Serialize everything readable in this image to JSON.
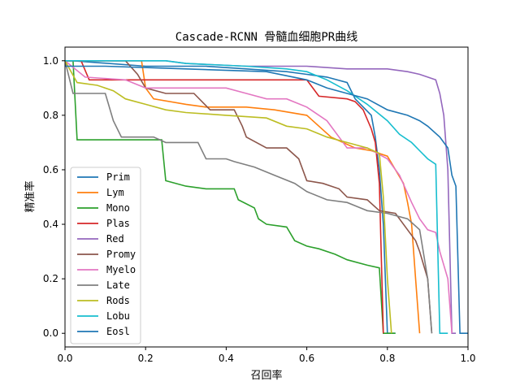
{
  "chart_data": {
    "type": "line",
    "title": "Cascade-RCNN 骨髓血细胞PR曲线",
    "xlabel": "召回率",
    "ylabel": "精准率",
    "xlim": [
      0,
      1.0
    ],
    "ylim": [
      -0.05,
      1.05
    ],
    "xticks": [
      "0.0",
      "0.2",
      "0.4",
      "0.6",
      "0.8",
      "1.0"
    ],
    "yticks": [
      "0.0",
      "0.2",
      "0.4",
      "0.6",
      "0.8",
      "1.0"
    ],
    "legend_position": "lower-left",
    "grid": false,
    "series": [
      {
        "name": "Prim",
        "color": "#1f77b4",
        "points": [
          [
            0,
            1.0
          ],
          [
            0.02,
            1.0
          ],
          [
            0.2,
            0.98
          ],
          [
            0.35,
            0.98
          ],
          [
            0.45,
            0.97
          ],
          [
            0.55,
            0.96
          ],
          [
            0.6,
            0.95
          ],
          [
            0.65,
            0.94
          ],
          [
            0.7,
            0.92
          ],
          [
            0.72,
            0.86
          ],
          [
            0.76,
            0.8
          ],
          [
            0.77,
            0.72
          ],
          [
            0.78,
            0.6
          ],
          [
            0.79,
            0.4
          ],
          [
            0.8,
            0.0
          ],
          [
            0.82,
            0.0
          ]
        ]
      },
      {
        "name": "Lym",
        "color": "#ff7f0e",
        "points": [
          [
            0,
            1.0
          ],
          [
            0.19,
            1.0
          ],
          [
            0.2,
            0.9
          ],
          [
            0.22,
            0.86
          ],
          [
            0.3,
            0.84
          ],
          [
            0.35,
            0.83
          ],
          [
            0.45,
            0.83
          ],
          [
            0.52,
            0.82
          ],
          [
            0.6,
            0.8
          ],
          [
            0.63,
            0.76
          ],
          [
            0.66,
            0.72
          ],
          [
            0.72,
            0.68
          ],
          [
            0.76,
            0.67
          ],
          [
            0.8,
            0.65
          ],
          [
            0.82,
            0.6
          ],
          [
            0.84,
            0.55
          ],
          [
            0.85,
            0.48
          ],
          [
            0.86,
            0.4
          ],
          [
            0.87,
            0.2
          ],
          [
            0.88,
            0.0
          ]
        ]
      },
      {
        "name": "Mono",
        "color": "#2ca02c",
        "points": [
          [
            0,
            1.0
          ],
          [
            0.02,
            1.0
          ],
          [
            0.03,
            0.71
          ],
          [
            0.1,
            0.71
          ],
          [
            0.24,
            0.71
          ],
          [
            0.25,
            0.56
          ],
          [
            0.3,
            0.54
          ],
          [
            0.35,
            0.53
          ],
          [
            0.42,
            0.53
          ],
          [
            0.43,
            0.49
          ],
          [
            0.47,
            0.46
          ],
          [
            0.48,
            0.42
          ],
          [
            0.5,
            0.4
          ],
          [
            0.55,
            0.39
          ],
          [
            0.57,
            0.34
          ],
          [
            0.6,
            0.32
          ],
          [
            0.63,
            0.31
          ],
          [
            0.67,
            0.29
          ],
          [
            0.7,
            0.27
          ],
          [
            0.75,
            0.25
          ],
          [
            0.78,
            0.24
          ],
          [
            0.79,
            0.0
          ],
          [
            0.82,
            0.0
          ]
        ]
      },
      {
        "name": "Plas",
        "color": "#d62728",
        "points": [
          [
            0,
            1.0
          ],
          [
            0.04,
            1.0
          ],
          [
            0.06,
            0.93
          ],
          [
            0.2,
            0.93
          ],
          [
            0.4,
            0.93
          ],
          [
            0.6,
            0.93
          ],
          [
            0.63,
            0.87
          ],
          [
            0.7,
            0.86
          ],
          [
            0.72,
            0.85
          ],
          [
            0.74,
            0.82
          ],
          [
            0.76,
            0.75
          ],
          [
            0.77,
            0.7
          ],
          [
            0.78,
            0.55
          ],
          [
            0.79,
            0.0
          ]
        ]
      },
      {
        "name": "Red",
        "color": "#9467bd",
        "points": [
          [
            0,
            1.0
          ],
          [
            0.25,
            1.0
          ],
          [
            0.3,
            0.99
          ],
          [
            0.45,
            0.98
          ],
          [
            0.6,
            0.98
          ],
          [
            0.7,
            0.97
          ],
          [
            0.8,
            0.97
          ],
          [
            0.85,
            0.96
          ],
          [
            0.88,
            0.95
          ],
          [
            0.9,
            0.94
          ],
          [
            0.92,
            0.93
          ],
          [
            0.93,
            0.88
          ],
          [
            0.94,
            0.8
          ],
          [
            0.95,
            0.6
          ],
          [
            0.96,
            0.0
          ],
          [
            0.97,
            0.0
          ]
        ]
      },
      {
        "name": "Promy",
        "color": "#8c564b",
        "points": [
          [
            0,
            1.0
          ],
          [
            0.15,
            1.0
          ],
          [
            0.18,
            0.95
          ],
          [
            0.2,
            0.9
          ],
          [
            0.25,
            0.88
          ],
          [
            0.32,
            0.88
          ],
          [
            0.36,
            0.82
          ],
          [
            0.42,
            0.82
          ],
          [
            0.44,
            0.76
          ],
          [
            0.45,
            0.72
          ],
          [
            0.5,
            0.68
          ],
          [
            0.55,
            0.68
          ],
          [
            0.58,
            0.64
          ],
          [
            0.6,
            0.56
          ],
          [
            0.64,
            0.55
          ],
          [
            0.68,
            0.53
          ],
          [
            0.7,
            0.5
          ],
          [
            0.75,
            0.49
          ],
          [
            0.78,
            0.45
          ],
          [
            0.82,
            0.44
          ],
          [
            0.85,
            0.38
          ],
          [
            0.87,
            0.34
          ],
          [
            0.88,
            0.3
          ],
          [
            0.9,
            0.2
          ],
          [
            0.91,
            0.0
          ]
        ]
      },
      {
        "name": "Myelo",
        "color": "#e377c2",
        "points": [
          [
            0,
            1.0
          ],
          [
            0.05,
            0.94
          ],
          [
            0.15,
            0.93
          ],
          [
            0.2,
            0.9
          ],
          [
            0.25,
            0.9
          ],
          [
            0.4,
            0.9
          ],
          [
            0.45,
            0.88
          ],
          [
            0.5,
            0.86
          ],
          [
            0.55,
            0.86
          ],
          [
            0.6,
            0.83
          ],
          [
            0.65,
            0.78
          ],
          [
            0.68,
            0.72
          ],
          [
            0.7,
            0.68
          ],
          [
            0.75,
            0.68
          ],
          [
            0.8,
            0.64
          ],
          [
            0.83,
            0.58
          ],
          [
            0.86,
            0.48
          ],
          [
            0.88,
            0.42
          ],
          [
            0.9,
            0.38
          ],
          [
            0.92,
            0.37
          ],
          [
            0.93,
            0.3
          ],
          [
            0.95,
            0.2
          ],
          [
            0.96,
            0.0
          ]
        ]
      },
      {
        "name": "Late",
        "color": "#7f7f7f",
        "points": [
          [
            0,
            1.0
          ],
          [
            0.02,
            0.88
          ],
          [
            0.1,
            0.88
          ],
          [
            0.12,
            0.78
          ],
          [
            0.14,
            0.72
          ],
          [
            0.22,
            0.72
          ],
          [
            0.25,
            0.7
          ],
          [
            0.33,
            0.7
          ],
          [
            0.35,
            0.64
          ],
          [
            0.4,
            0.64
          ],
          [
            0.42,
            0.63
          ],
          [
            0.47,
            0.61
          ],
          [
            0.52,
            0.58
          ],
          [
            0.57,
            0.55
          ],
          [
            0.6,
            0.52
          ],
          [
            0.65,
            0.49
          ],
          [
            0.7,
            0.48
          ],
          [
            0.75,
            0.45
          ],
          [
            0.8,
            0.44
          ],
          [
            0.85,
            0.42
          ],
          [
            0.88,
            0.38
          ],
          [
            0.9,
            0.2
          ],
          [
            0.91,
            0.0
          ]
        ]
      },
      {
        "name": "Rods",
        "color": "#bcbd22",
        "points": [
          [
            0,
            1.0
          ],
          [
            0.03,
            0.92
          ],
          [
            0.08,
            0.91
          ],
          [
            0.12,
            0.89
          ],
          [
            0.15,
            0.86
          ],
          [
            0.2,
            0.84
          ],
          [
            0.25,
            0.82
          ],
          [
            0.3,
            0.81
          ],
          [
            0.4,
            0.8
          ],
          [
            0.5,
            0.79
          ],
          [
            0.55,
            0.76
          ],
          [
            0.6,
            0.75
          ],
          [
            0.65,
            0.72
          ],
          [
            0.7,
            0.7
          ],
          [
            0.75,
            0.68
          ],
          [
            0.78,
            0.66
          ],
          [
            0.79,
            0.5
          ],
          [
            0.8,
            0.2
          ],
          [
            0.81,
            0.0
          ]
        ]
      },
      {
        "name": "Lobu",
        "color": "#17becf",
        "points": [
          [
            0,
            1.0
          ],
          [
            0.25,
            1.0
          ],
          [
            0.3,
            0.99
          ],
          [
            0.45,
            0.98
          ],
          [
            0.55,
            0.97
          ],
          [
            0.6,
            0.96
          ],
          [
            0.65,
            0.93
          ],
          [
            0.7,
            0.89
          ],
          [
            0.75,
            0.84
          ],
          [
            0.8,
            0.78
          ],
          [
            0.83,
            0.73
          ],
          [
            0.86,
            0.7
          ],
          [
            0.88,
            0.67
          ],
          [
            0.9,
            0.64
          ],
          [
            0.92,
            0.62
          ],
          [
            0.93,
            0.0
          ],
          [
            0.95,
            0.0
          ]
        ]
      },
      {
        "name": "Eosl",
        "color": "#1f77b4",
        "points": [
          [
            0,
            0.98
          ],
          [
            0.1,
            0.98
          ],
          [
            0.3,
            0.97
          ],
          [
            0.5,
            0.96
          ],
          [
            0.6,
            0.93
          ],
          [
            0.65,
            0.9
          ],
          [
            0.7,
            0.88
          ],
          [
            0.75,
            0.86
          ],
          [
            0.8,
            0.82
          ],
          [
            0.85,
            0.8
          ],
          [
            0.88,
            0.78
          ],
          [
            0.9,
            0.76
          ],
          [
            0.93,
            0.72
          ],
          [
            0.95,
            0.68
          ],
          [
            0.96,
            0.58
          ],
          [
            0.97,
            0.54
          ],
          [
            0.98,
            0.0
          ],
          [
            1.0,
            0.0
          ]
        ]
      }
    ]
  }
}
